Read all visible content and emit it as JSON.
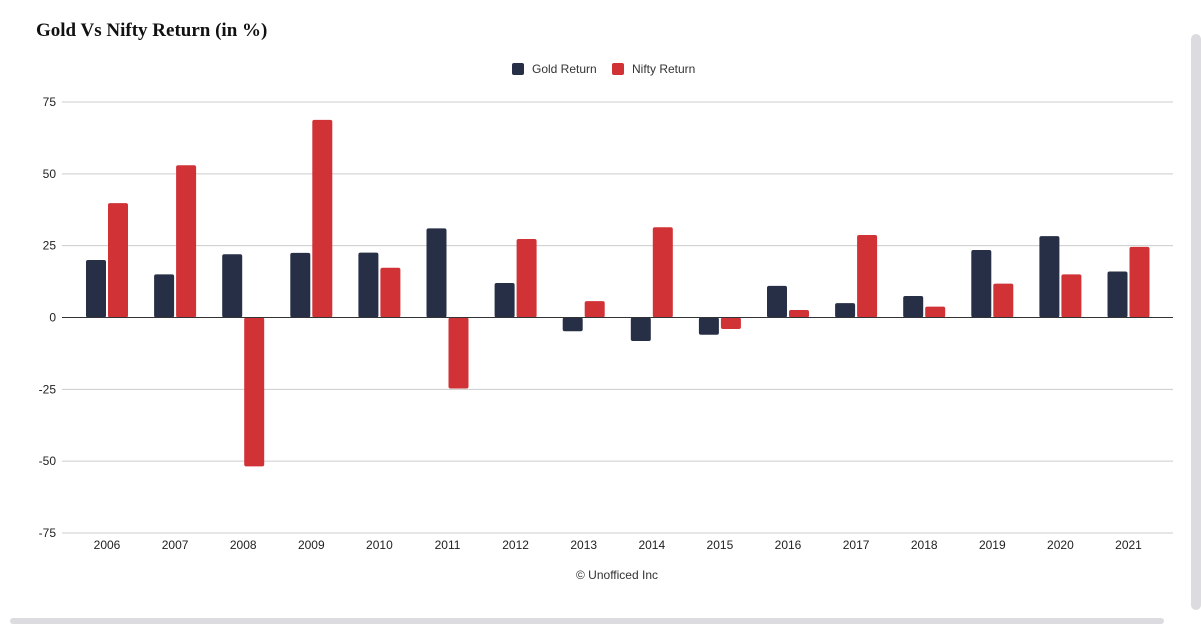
{
  "chart_data": {
    "type": "bar",
    "title": "Gold Vs Nifty Return (in %)",
    "source": "© Unofficed Inc",
    "categories": [
      "2006",
      "2007",
      "2008",
      "2009",
      "2010",
      "2011",
      "2012",
      "2013",
      "2014",
      "2015",
      "2016",
      "2017",
      "2018",
      "2019",
      "2020",
      "2021"
    ],
    "series": [
      {
        "name": "Gold Return",
        "color": "#262f45",
        "values": [
          20,
          15,
          22,
          22.5,
          22.6,
          31,
          12,
          -4.8,
          -8.2,
          -6,
          11,
          5,
          7.5,
          23.5,
          28.3,
          16
        ]
      },
      {
        "name": "Nifty Return",
        "color": "#d03236",
        "values": [
          39.8,
          53,
          -51.8,
          68.8,
          17.3,
          -24.7,
          27.3,
          5.7,
          31.4,
          -4,
          2.6,
          28.7,
          3.8,
          11.8,
          15,
          24.6
        ]
      }
    ],
    "yticks": [
      75,
      50,
      25,
      0,
      -25,
      -50,
      -75
    ],
    "ylim": [
      -75,
      75
    ],
    "grid": true,
    "legend_position": "top-center",
    "xlabel": "",
    "ylabel": ""
  }
}
